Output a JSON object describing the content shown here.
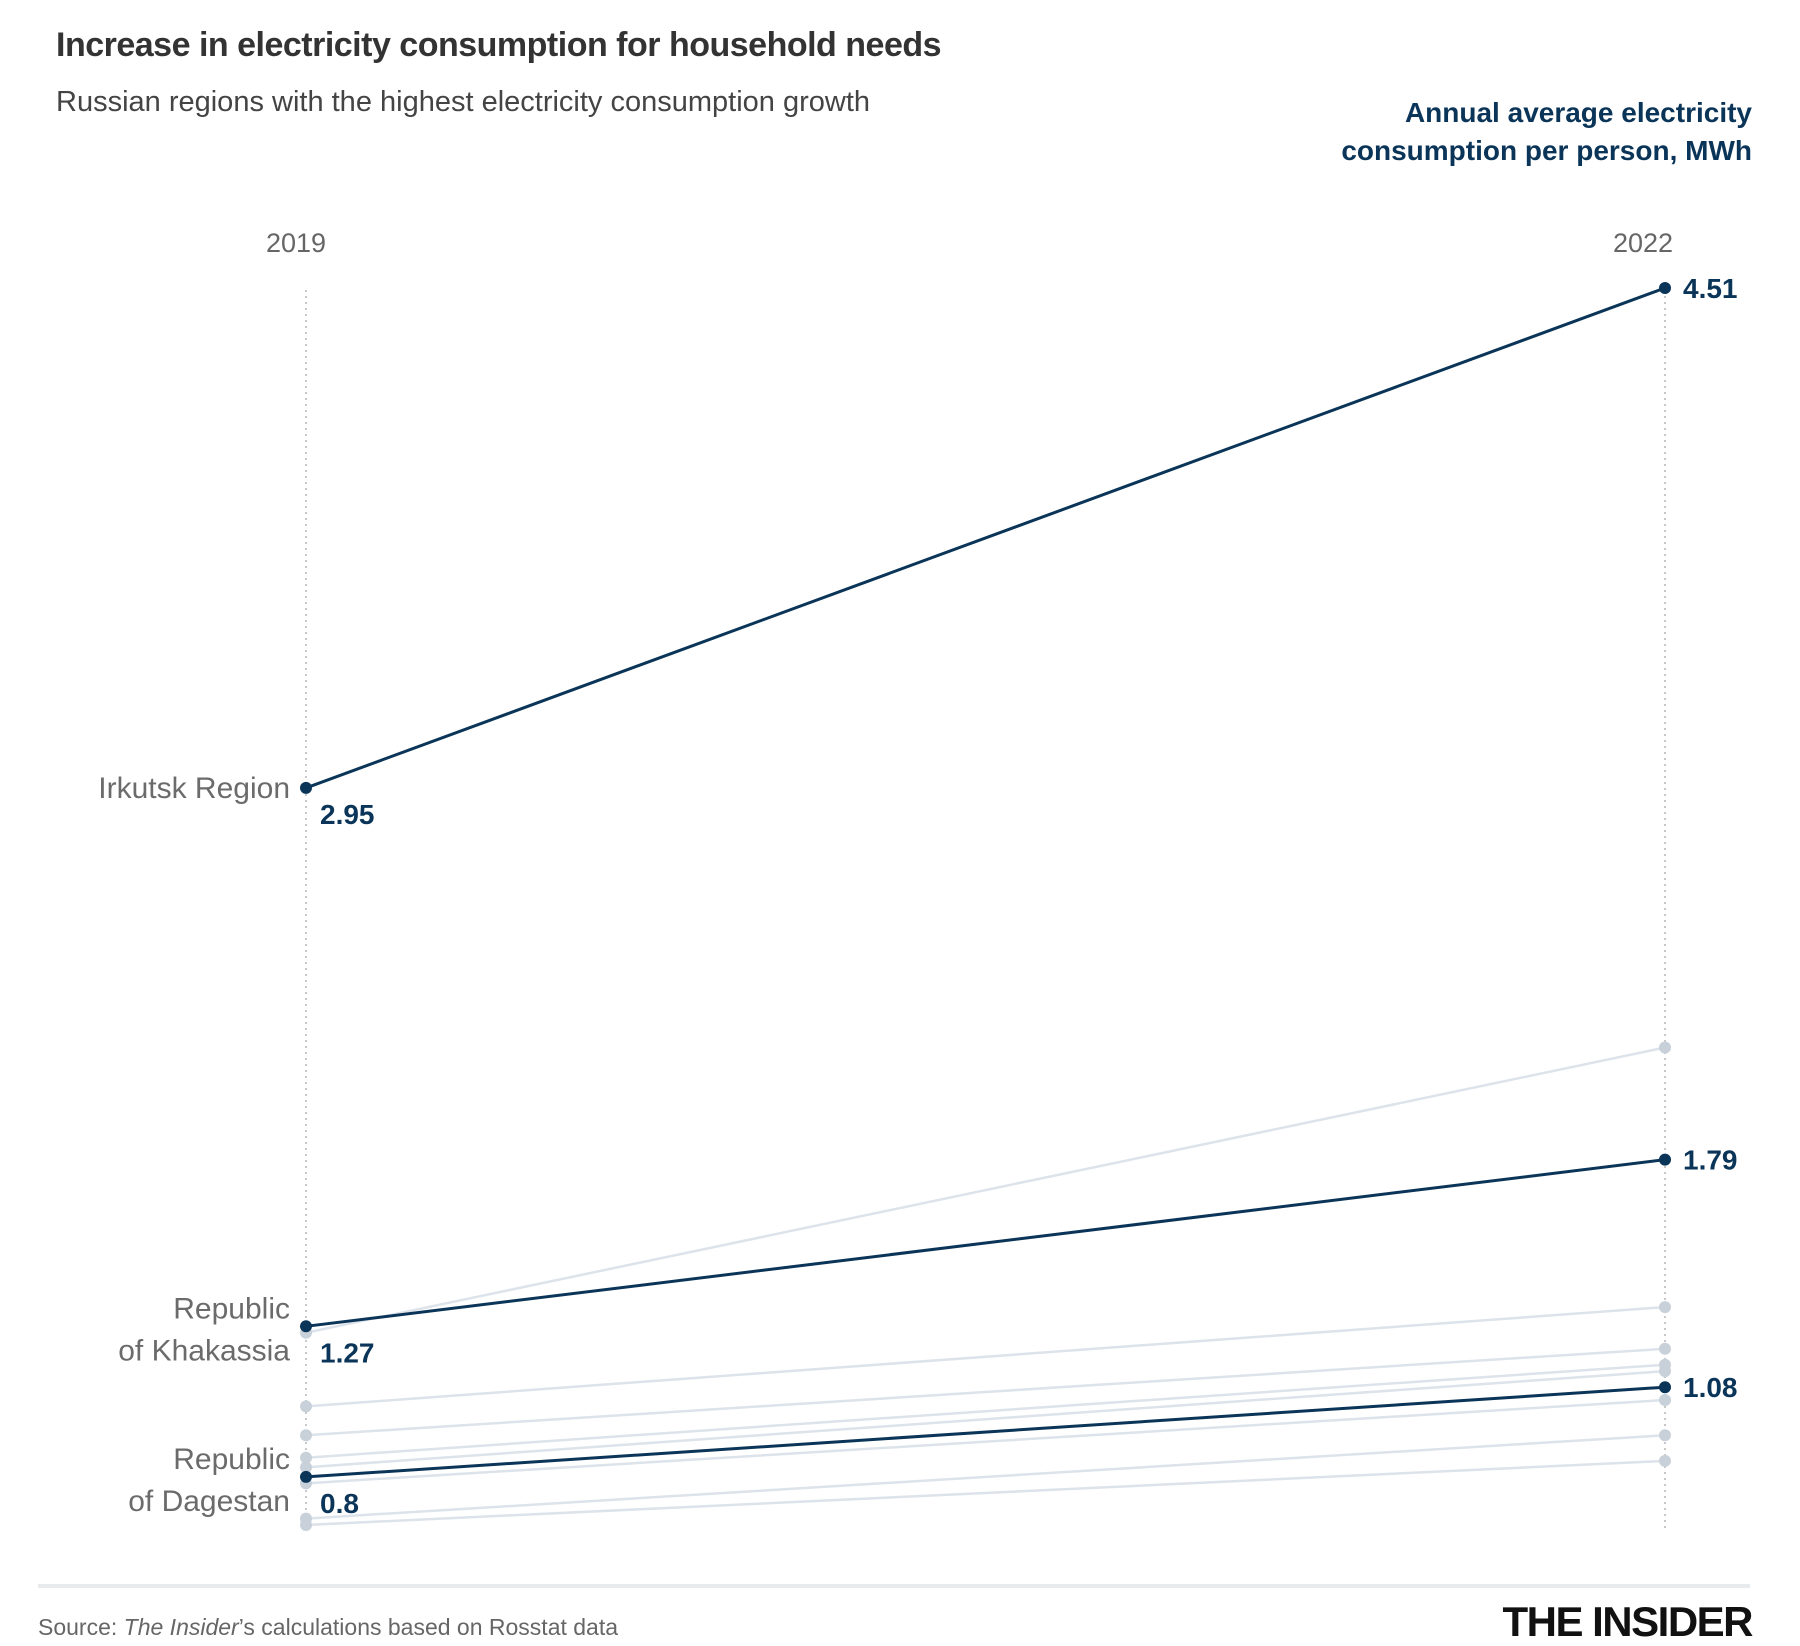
{
  "header": {
    "title": "Increase in electricity consumption for household needs",
    "subtitle": "Russian regions with the highest electricity consumption growth",
    "unit_label": "Annual average electricity consumption per person, MWh"
  },
  "footer": {
    "source_prefix": "Source: ",
    "source_italic": "The Insider",
    "source_suffix": "’s calculations based on Rosstat data",
    "logo": "THE INSIDER"
  },
  "colors": {
    "highlight": "#0b3558",
    "muted_line": "#dde3ea",
    "muted_dot": "#c8d1da",
    "axis": "#c8c8c8"
  },
  "chart_data": {
    "type": "slope",
    "title": "Increase in electricity consumption for household needs",
    "subtitle": "Russian regions with the highest electricity consumption growth",
    "ylabel": "Annual average electricity consumption per person, MWh",
    "x": [
      "2019",
      "2022"
    ],
    "ylim": [
      0.65,
      4.51
    ],
    "series": [
      {
        "name": "Irkutsk Region",
        "values": [
          2.95,
          4.51
        ],
        "highlight": true,
        "show_labels": true
      },
      {
        "name": "Republic of Khakassia",
        "values": [
          1.27,
          1.79
        ],
        "highlight": true,
        "show_labels": true
      },
      {
        "name": "Republic of Dagestan",
        "values": [
          0.8,
          1.08
        ],
        "highlight": true,
        "show_labels": true
      },
      {
        "name": "",
        "values": [
          1.25,
          2.14
        ],
        "highlight": false
      },
      {
        "name": "",
        "values": [
          1.02,
          1.33
        ],
        "highlight": false
      },
      {
        "name": "",
        "values": [
          0.93,
          1.2
        ],
        "highlight": false
      },
      {
        "name": "",
        "values": [
          0.86,
          1.15
        ],
        "highlight": false
      },
      {
        "name": "",
        "values": [
          0.83,
          1.13
        ],
        "highlight": false
      },
      {
        "name": "",
        "values": [
          0.78,
          1.04
        ],
        "highlight": false
      },
      {
        "name": "",
        "values": [
          0.67,
          0.93
        ],
        "highlight": false
      },
      {
        "name": "",
        "values": [
          0.65,
          0.85
        ],
        "highlight": false
      }
    ],
    "region_labels": [
      {
        "series": 0,
        "lines": [
          "Irkutsk Region"
        ]
      },
      {
        "series": 1,
        "lines": [
          "Republic",
          "of Khakassia"
        ]
      },
      {
        "series": 2,
        "lines": [
          "Republic",
          "of Dagestan"
        ]
      }
    ]
  }
}
